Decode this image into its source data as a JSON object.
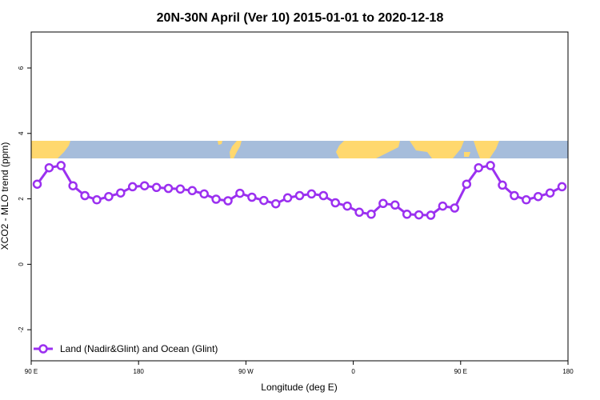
{
  "chart_data": {
    "type": "line",
    "title": "20N-30N April (Ver 10)   2015-01-01 to 2020-12-18",
    "xlabel": "Longitude (deg E)",
    "ylabel": "XCO2 - MLO trend (ppm)",
    "x_ticks": [
      {
        "value": 90,
        "label": "90 E"
      },
      {
        "value": 180,
        "label": "180"
      },
      {
        "value": 270,
        "label": "90 W"
      },
      {
        "value": 360,
        "label": "0"
      },
      {
        "value": 450,
        "label": "90 E"
      },
      {
        "value": 540,
        "label": "180"
      }
    ],
    "y_ticks": [
      -2,
      0,
      2,
      4,
      6
    ],
    "xlim": [
      90,
      540
    ],
    "ylim": [
      -2.95,
      7.1
    ],
    "grid": false,
    "legend_position": "bottom-left",
    "colors": {
      "series": "#9B30F0",
      "land": "#FFD86E",
      "ocean": "#A6BDDB"
    },
    "map_strip": {
      "y_range": [
        3.22,
        3.72
      ]
    },
    "series": [
      {
        "name": "Land (Nadir&Glint) and Ocean (Glint)",
        "x": [
          95,
          105,
          115,
          125,
          135,
          145,
          155,
          165,
          175,
          185,
          195,
          205,
          215,
          225,
          235,
          245,
          255,
          265,
          275,
          285,
          295,
          305,
          315,
          325,
          335,
          345,
          355,
          365,
          375,
          385,
          395,
          405,
          415,
          425,
          435,
          445,
          455,
          465,
          475,
          485,
          495,
          505,
          515,
          525,
          535
        ],
        "y": [
          2.45,
          2.95,
          3.02,
          2.4,
          2.1,
          1.97,
          2.07,
          2.18,
          2.37,
          2.4,
          2.35,
          2.32,
          2.3,
          2.25,
          2.15,
          1.99,
          1.94,
          2.17,
          2.05,
          1.95,
          1.85,
          2.03,
          2.1,
          2.15,
          2.1,
          1.88,
          1.78,
          1.59,
          1.53,
          1.86,
          1.81,
          1.53,
          1.51,
          1.5,
          1.78,
          1.72,
          2.45,
          2.95,
          3.02,
          2.42,
          2.1,
          1.97,
          2.07,
          2.18,
          2.37
        ]
      }
    ]
  }
}
